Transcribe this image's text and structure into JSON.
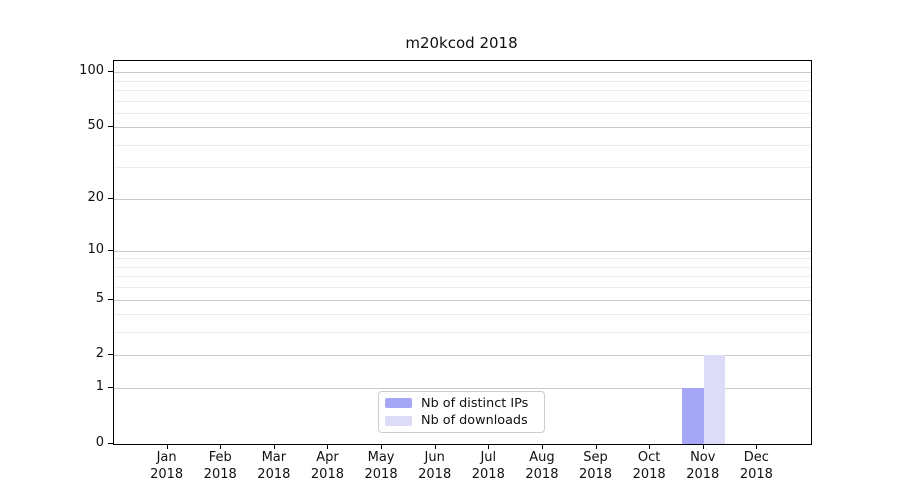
{
  "figure": {
    "background": "#ffffff"
  },
  "chart_data": {
    "type": "bar",
    "title": "m20kcod 2018",
    "x_categories_months": [
      "Jan",
      "Feb",
      "Mar",
      "Apr",
      "May",
      "Jun",
      "Jul",
      "Aug",
      "Sep",
      "Oct",
      "Nov",
      "Dec"
    ],
    "x_year_label": "2018",
    "series": [
      {
        "name": "Nb of distinct IPs",
        "color": "#a6a6f7",
        "values": [
          0,
          0,
          0,
          0,
          0,
          0,
          0,
          0,
          0,
          0,
          1,
          0
        ]
      },
      {
        "name": "Nb of downloads",
        "color": "#dcdcf9",
        "values": [
          0,
          0,
          0,
          0,
          0,
          0,
          0,
          0,
          0,
          0,
          2,
          0
        ]
      }
    ],
    "y_scale": "log1p",
    "ylim": [
      0,
      115
    ],
    "y_major_ticks": [
      0,
      1,
      2,
      5,
      10,
      20,
      50,
      100
    ],
    "y_minor_gridlines": [
      3,
      4,
      6,
      7,
      8,
      9,
      30,
      40,
      60,
      70,
      80,
      90
    ],
    "grid": "horizontal",
    "legend": {
      "position": "lower center",
      "entries": [
        "Nb of distinct IPs",
        "Nb of downloads"
      ]
    },
    "colors": {
      "major_grid": "#c9c9c9",
      "minor_grid": "#ececec",
      "axis": "#000000",
      "text": "#111111"
    }
  }
}
